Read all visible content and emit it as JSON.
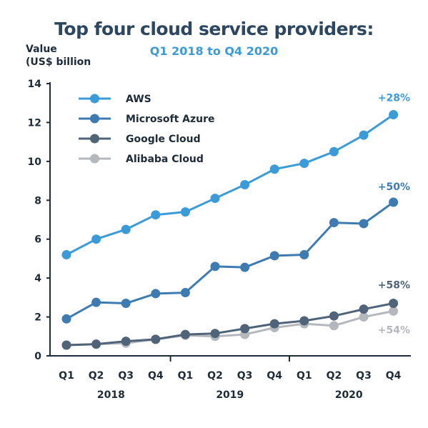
{
  "chart_data": {
    "type": "line",
    "title": "Top four cloud service providers:",
    "subtitle": "Q1 2018 to Q4 2020",
    "ylabel_line1": "Value",
    "ylabel_line2": "(US$ billion",
    "ylim": [
      0,
      14
    ],
    "yticks": [
      "0",
      "2",
      "4",
      "6",
      "8",
      "10",
      "12",
      "14"
    ],
    "categories": [
      "Q1",
      "Q2",
      "Q3",
      "Q4",
      "Q1",
      "Q2",
      "Q3",
      "Q4",
      "Q1",
      "Q2",
      "Q3",
      "Q4"
    ],
    "years": [
      "2018",
      "2019",
      "2020"
    ],
    "grid": false,
    "legend_position": "top-left",
    "series": [
      {
        "name": "AWS",
        "color": "#3b9bd9",
        "growth_label": "+28%",
        "values": [
          5.2,
          6.0,
          6.5,
          7.25,
          7.4,
          8.1,
          8.8,
          9.6,
          9.9,
          10.5,
          11.35,
          12.4
        ]
      },
      {
        "name": "Microsoft Azure",
        "color": "#3d7bb0",
        "growth_label": "+50%",
        "values": [
          1.9,
          2.75,
          2.7,
          3.2,
          3.25,
          4.6,
          4.55,
          5.15,
          5.2,
          6.85,
          6.8,
          7.9
        ]
      },
      {
        "name": "Google Cloud",
        "color": "#4f6479",
        "growth_label": "+58%",
        "values": [
          0.55,
          0.6,
          0.75,
          0.85,
          1.1,
          1.15,
          1.4,
          1.65,
          1.8,
          2.05,
          2.4,
          2.7
        ]
      },
      {
        "name": "Alibaba Cloud",
        "color": "#b4b8bd",
        "growth_label": "+54%",
        "values": [
          0.55,
          0.6,
          0.65,
          0.85,
          1.05,
          1.0,
          1.1,
          1.45,
          1.65,
          1.55,
          2.0,
          2.3
        ]
      }
    ]
  }
}
